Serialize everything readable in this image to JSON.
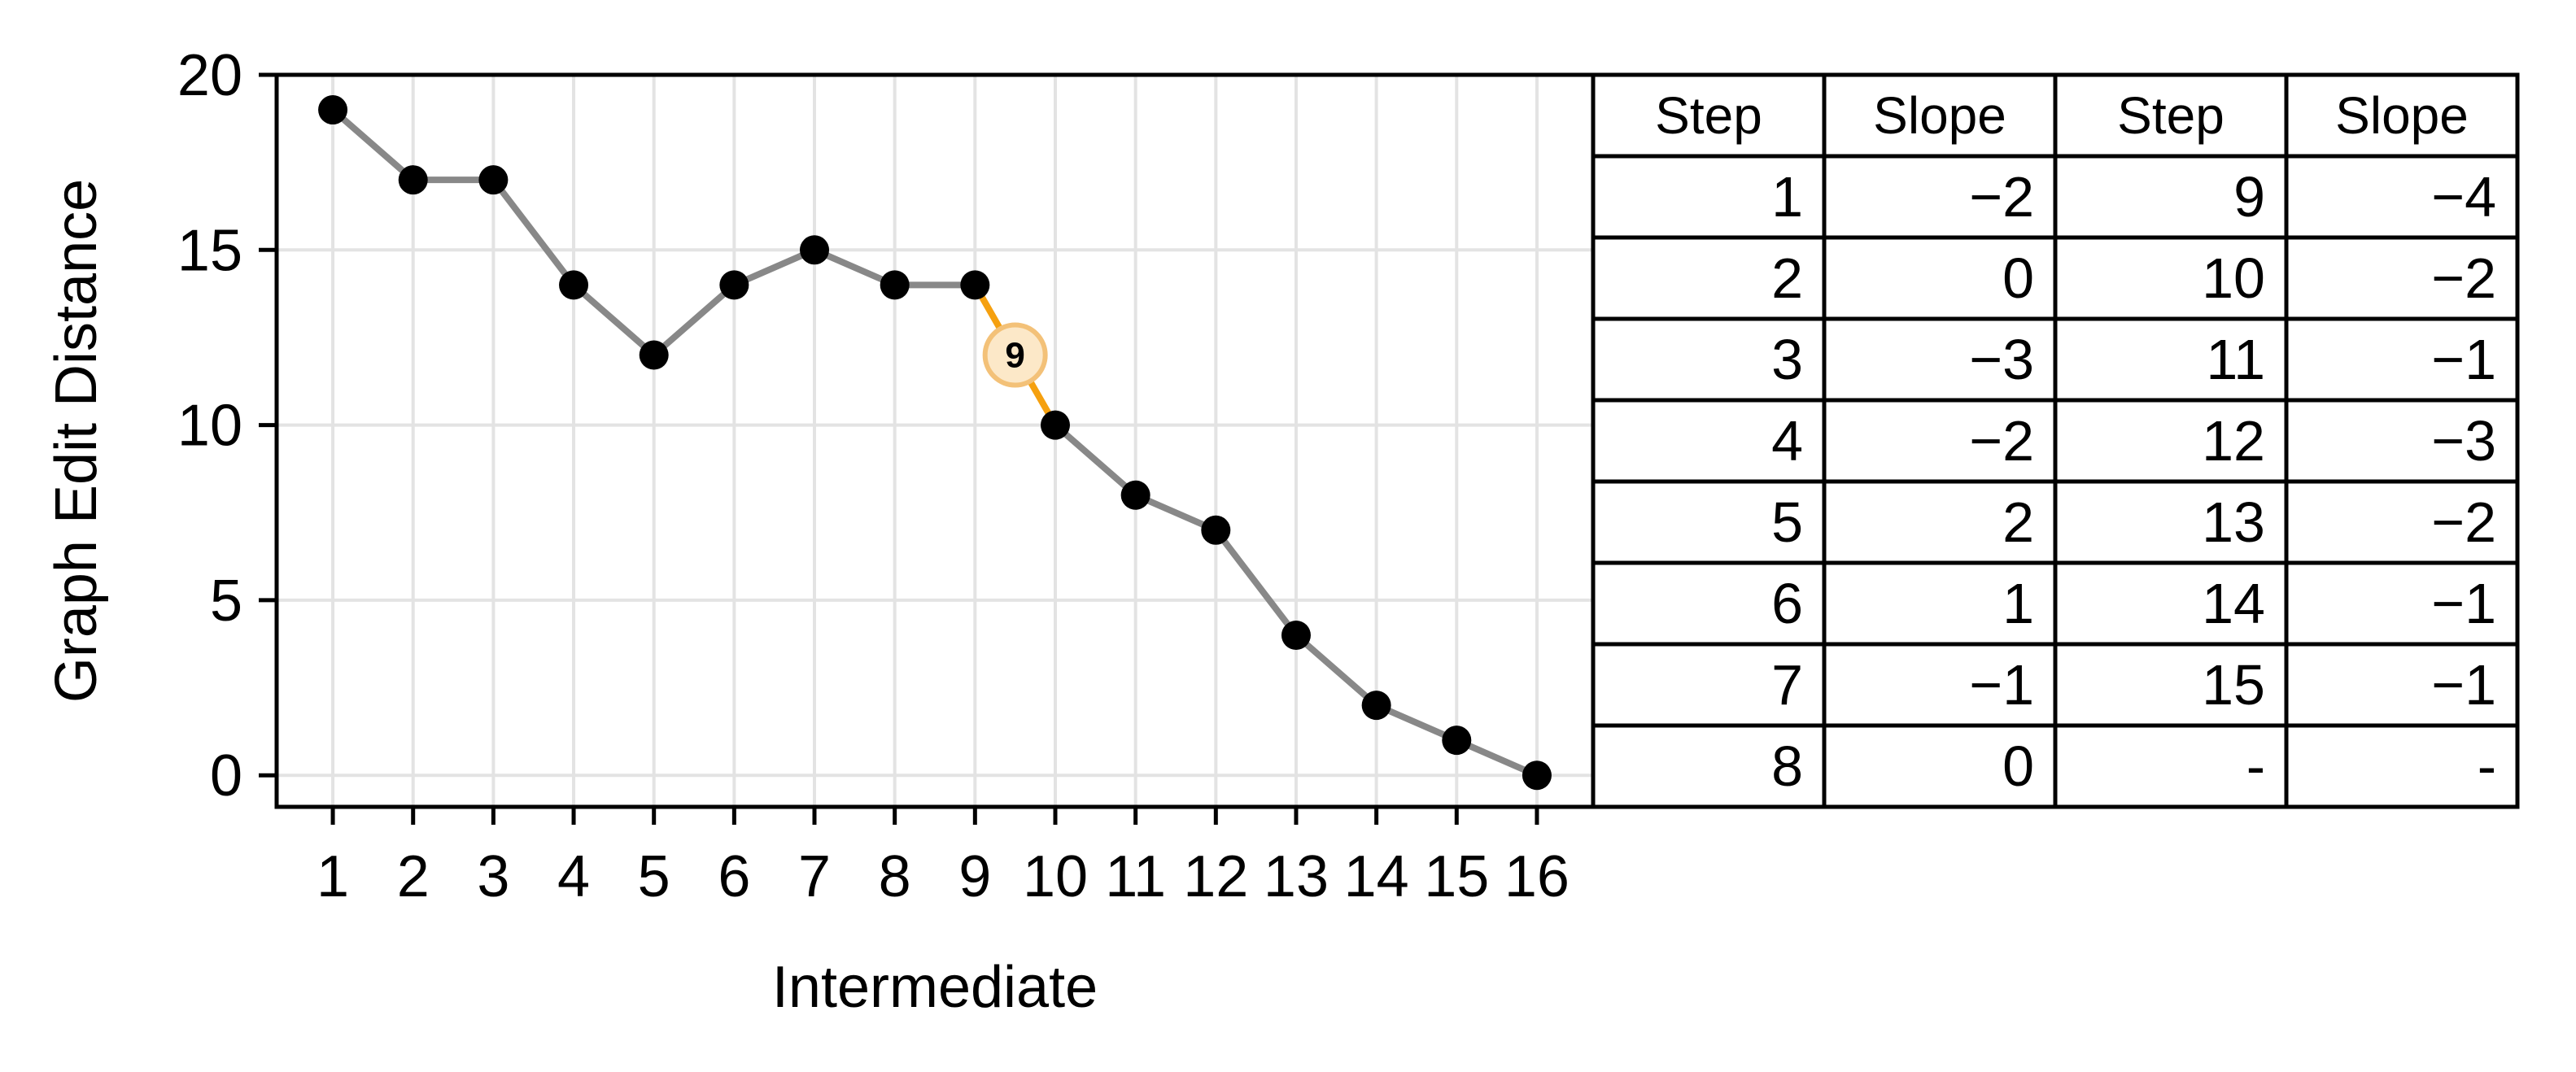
{
  "chart_data": {
    "type": "line",
    "xlabel": "Intermediate",
    "ylabel": "Graph Edit Distance",
    "xlim": [
      0.3,
      16.7
    ],
    "ylim": [
      -0.9,
      20
    ],
    "grid": true,
    "x": [
      1,
      2,
      3,
      4,
      5,
      6,
      7,
      8,
      9,
      10,
      11,
      12,
      13,
      14,
      15,
      16
    ],
    "x_tick_labels": [
      "1",
      "2",
      "3",
      "4",
      "5",
      "6",
      "7",
      "8",
      "9",
      "10",
      "11",
      "12",
      "13",
      "14",
      "15",
      "16"
    ],
    "y_ticks": [
      0,
      5,
      10,
      15,
      20
    ],
    "y_tick_labels": [
      "0",
      "5",
      "10",
      "15",
      "20"
    ],
    "series": [
      {
        "values": [
          19,
          17,
          17,
          14,
          12,
          14,
          15,
          14,
          14,
          10,
          8,
          7,
          4,
          2,
          1,
          0
        ]
      }
    ],
    "highlight": {
      "segment_from": 9,
      "segment_to": 10,
      "label": "9",
      "point_x": 9.5,
      "point_y": 12
    },
    "table": {
      "headers": [
        "Step",
        "Slope",
        "Step",
        "Slope"
      ],
      "rows": [
        [
          "1",
          "−2",
          "9",
          "−4"
        ],
        [
          "2",
          "0",
          "10",
          "−2"
        ],
        [
          "3",
          "−3",
          "11",
          "−1"
        ],
        [
          "4",
          "−2",
          "12",
          "−3"
        ],
        [
          "5",
          "2",
          "13",
          "−2"
        ],
        [
          "6",
          "1",
          "14",
          "−1"
        ],
        [
          "7",
          "−1",
          "15",
          "−1"
        ],
        [
          "8",
          "0",
          "-",
          "-"
        ]
      ]
    }
  },
  "colors": {
    "line": "#888888",
    "marker": "#000000",
    "highlight_line": "#f5a00f",
    "highlight_fill": "#fce8c8",
    "highlight_edge": "#f3c178",
    "grid": "#e3e3e3"
  }
}
